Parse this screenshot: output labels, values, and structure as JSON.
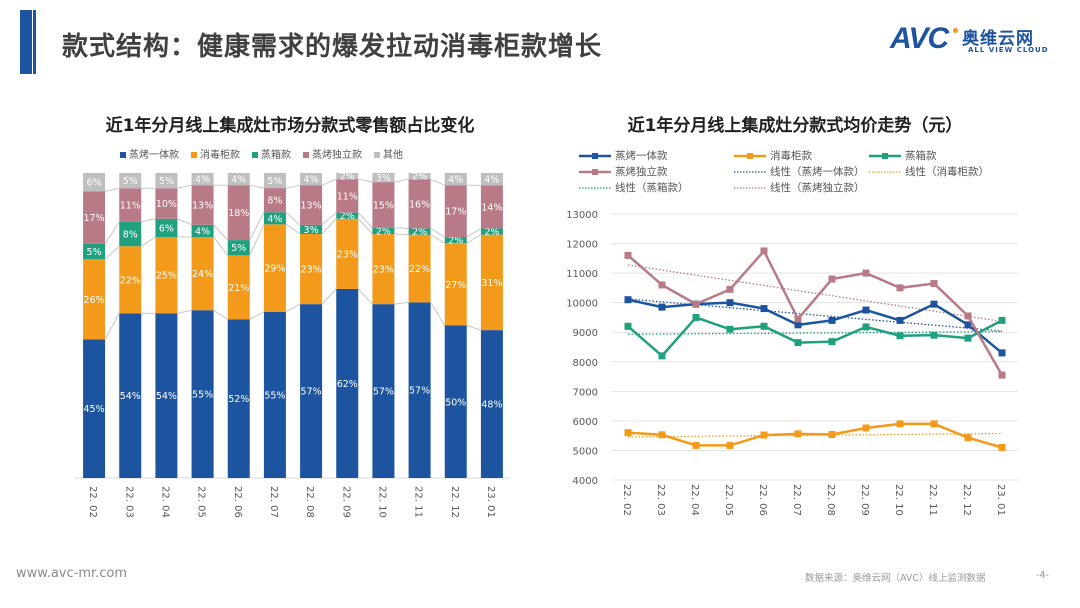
{
  "header": {
    "title": "款式结构：健康需求的爆发拉动消毒柜款增长",
    "logo_mark": "AVC",
    "logo_cn": "奥维云网",
    "logo_en": "ALL VIEW CLOUD"
  },
  "colors": {
    "steam_oven": "#1c54a0",
    "disinfection": "#f39a1b",
    "steam_box": "#1fa07f",
    "steam_standalone": "#b77a86",
    "other": "#bfbfbf",
    "accent": "#1c54a0"
  },
  "chart_data": [
    {
      "type": "bar",
      "stacked": true,
      "percent": true,
      "title": "近1年分月线上集成灶市场分款式零售额占比变化",
      "xlabel": "",
      "ylabel": "",
      "ylim": [
        0,
        100
      ],
      "legend_position": "top",
      "categories": [
        "22.02",
        "22.03",
        "22.04",
        "22.05",
        "22.06",
        "22.07",
        "22.08",
        "22.09",
        "22.10",
        "22.11",
        "22.12",
        "23.01"
      ],
      "series": [
        {
          "name": "蒸烤一体款",
          "color": "#1c54a0",
          "values": [
            45,
            54,
            54,
            55,
            52,
            55,
            57,
            62,
            57,
            57,
            50,
            48
          ]
        },
        {
          "name": "消毒柜款",
          "color": "#f39a1b",
          "values": [
            26,
            22,
            25,
            24,
            21,
            29,
            23,
            23,
            23,
            22,
            27,
            31
          ]
        },
        {
          "name": "蒸箱款",
          "color": "#1fa07f",
          "values": [
            5,
            8,
            6,
            4,
            5,
            4,
            3,
            2,
            2,
            2,
            2,
            2
          ]
        },
        {
          "name": "蒸烤独立款",
          "color": "#b77a86",
          "values": [
            17,
            11,
            10,
            13,
            18,
            8,
            13,
            11,
            15,
            16,
            17,
            14
          ]
        },
        {
          "name": "其他",
          "color": "#bfbfbf",
          "values": [
            6,
            5,
            5,
            4,
            4,
            5,
            4,
            2,
            3,
            2,
            4,
            4
          ]
        }
      ]
    },
    {
      "type": "line",
      "title": "近1年分月线上集成灶分款式均价走势（元）",
      "xlabel": "",
      "ylabel": "",
      "ylim": [
        4000,
        13000
      ],
      "yticks": [
        13000,
        12000,
        11000,
        10000,
        9000,
        8000,
        7000,
        6000,
        5000,
        4000
      ],
      "grid": true,
      "legend_position": "top",
      "x": [
        "22.02",
        "22.03",
        "22.04",
        "22.05",
        "22.06",
        "22.07",
        "22.08",
        "22.09",
        "22.10",
        "22.11",
        "22.12",
        "23.01"
      ],
      "series": [
        {
          "name": "蒸烤一体款",
          "color": "#1c54a0",
          "marker": "square",
          "values": [
            10100,
            9850,
            9950,
            10000,
            9800,
            9250,
            9400,
            9750,
            9400,
            9950,
            9250,
            8300
          ]
        },
        {
          "name": "消毒柜款",
          "color": "#f39a1b",
          "marker": "square",
          "values": [
            5600,
            5530,
            5170,
            5170,
            5520,
            5560,
            5540,
            5760,
            5900,
            5900,
            5430,
            5100
          ]
        },
        {
          "name": "蒸箱款",
          "color": "#1fa07f",
          "marker": "square",
          "values": [
            9200,
            8200,
            9500,
            9100,
            9200,
            8650,
            8680,
            9180,
            8880,
            8900,
            8800,
            9400
          ]
        },
        {
          "name": "蒸烤独立款",
          "color": "#b77a86",
          "marker": "square",
          "values": [
            11600,
            10600,
            9950,
            10450,
            11750,
            9450,
            10800,
            11000,
            10500,
            10650,
            9550,
            7550
          ]
        }
      ],
      "trendlines": [
        {
          "name": "线性（蒸烤一体款）",
          "of": "蒸烤一体款",
          "color": "#1c54a0",
          "style": "dotted"
        },
        {
          "name": "线性（消毒柜款）",
          "of": "消毒柜款",
          "color": "#f39a1b",
          "style": "dotted"
        },
        {
          "name": "线性（蒸箱款）",
          "of": "蒸箱款",
          "color": "#1fa07f",
          "style": "dotted"
        },
        {
          "name": "线性（蒸烤独立款）",
          "of": "蒸烤独立款",
          "color": "#b77a86",
          "style": "dotted"
        }
      ]
    }
  ],
  "footer": {
    "website": "www.avc-mr.com",
    "source": "数据来源：奥维云网（AVC）线上监测数据",
    "page": "-4-"
  }
}
